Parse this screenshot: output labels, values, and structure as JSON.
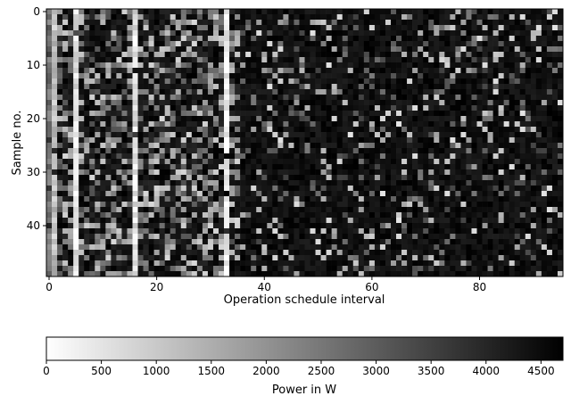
{
  "chart_data": [
    {
      "type": "heatmap",
      "title": "",
      "xlabel": "Operation schedule interval",
      "ylabel": "Sample no.",
      "rows": 50,
      "cols": 96,
      "xlim": [
        -0.5,
        95.5
      ],
      "ylim": [
        49.5,
        -0.5
      ],
      "x_ticks": [
        0,
        20,
        40,
        60,
        80
      ],
      "y_ticks": [
        0,
        10,
        20,
        30,
        40
      ],
      "value_range": [
        0,
        4700
      ],
      "colormap": "gray (0 = white, 4700 = black)",
      "grid": false,
      "column_profile": [
        {
          "cols": [
            0
          ],
          "mean_level": 0.55
        },
        {
          "cols": [
            1
          ],
          "mean_level": 0.25
        },
        {
          "cols": [
            5
          ],
          "mean_level": 0.1
        },
        {
          "cols": [
            16
          ],
          "mean_level": 0.12
        },
        {
          "cols": [
            27,
            28
          ],
          "mean_level": 0.35
        },
        {
          "cols": [
            33
          ],
          "mean_level": 0.05
        },
        {
          "cols": "2-35 other",
          "mean_level": 0.75
        },
        {
          "cols": "36-95",
          "mean_level": 0.93
        }
      ],
      "note_cells": "values: 0–4700 power scale; exact per-cell values estimated by column profile"
    },
    {
      "type": "colorbar",
      "label": "Power in W",
      "range": [
        0,
        4700
      ],
      "ticks": [
        0,
        500,
        1000,
        1500,
        2000,
        2500,
        3000,
        3500,
        4000,
        4500
      ],
      "tick_labels": [
        "0",
        "500",
        "1000",
        "1500",
        "2000",
        "2500",
        "3000",
        "3500",
        "4000",
        "4500"
      ]
    }
  ]
}
